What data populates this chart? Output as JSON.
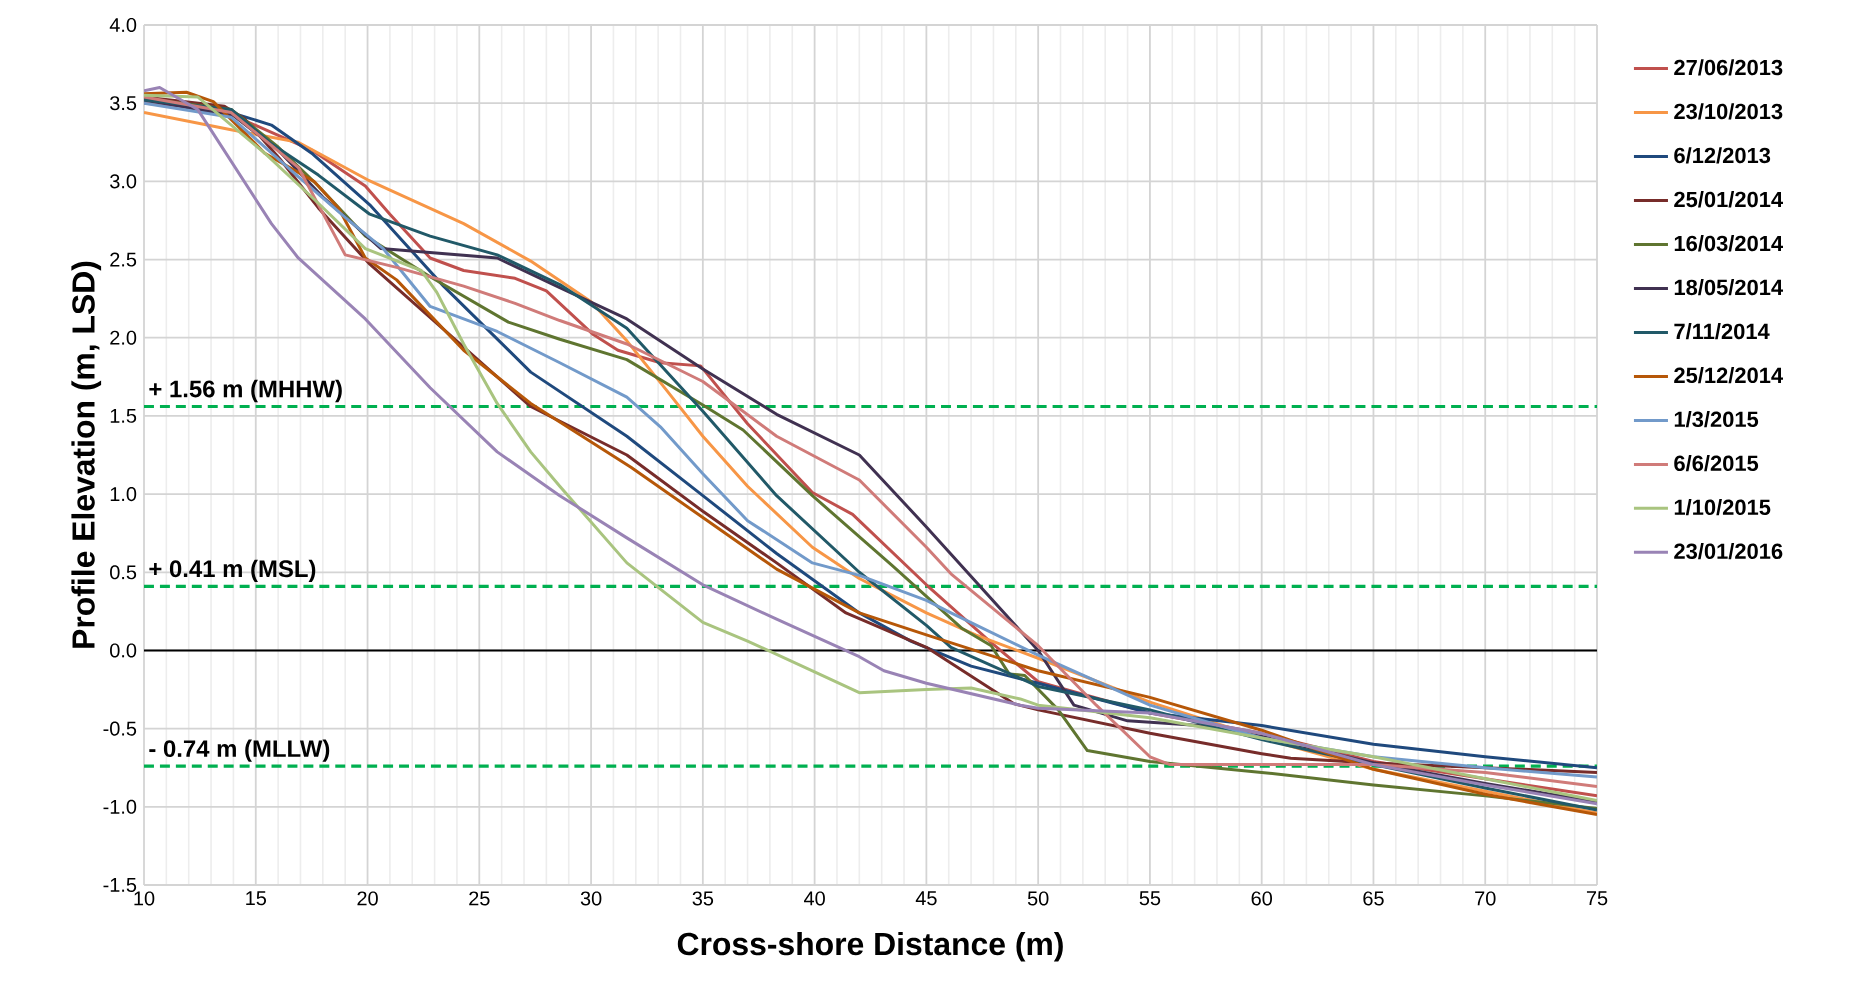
{
  "chart_data": {
    "type": "line",
    "xlabel": "Cross-shore Distance (m)",
    "ylabel": "Profile Elevation (m, LSD)",
    "xlim": [
      10,
      75
    ],
    "ylim": [
      -1.5,
      4
    ],
    "xticks": [
      10,
      15,
      20,
      25,
      30,
      35,
      40,
      45,
      50,
      55,
      60,
      65,
      70,
      75
    ],
    "yticks": [
      {
        "value": -1.5,
        "label": "-1.5"
      },
      {
        "value": -1,
        "label": "-1.0"
      },
      {
        "value": -0.5,
        "label": "-0.5"
      },
      {
        "value": 0,
        "label": "0.0"
      },
      {
        "value": 0.5,
        "label": "0.5"
      },
      {
        "value": 1,
        "label": "1.0"
      },
      {
        "value": 1.5,
        "label": "1.5"
      },
      {
        "value": 2,
        "label": "2.0"
      },
      {
        "value": 2.5,
        "label": "2.5"
      },
      {
        "value": 3,
        "label": "3.0"
      },
      {
        "value": 3.5,
        "label": "3.5"
      },
      {
        "value": 4,
        "label": "4.0"
      }
    ],
    "grid": true,
    "legend": "right",
    "marker": "none",
    "line_style": "solid",
    "ref_lines": [
      {
        "axis": "y",
        "value": 1.56,
        "label": "+ 1.56 m (MHHW)",
        "color": "#00b050",
        "line_style": "dashed"
      },
      {
        "axis": "y",
        "value": 0.41,
        "label": "+ 0.41 m (MSL)",
        "color": "#00b050",
        "line_style": "dashed"
      },
      {
        "axis": "y",
        "value": -0.74,
        "label": "- 0.74 m (MLLW)",
        "color": "#00b050",
        "line_style": "dashed"
      }
    ],
    "series": [
      {
        "name": "27/06/2013",
        "color": "#c0504d",
        "x": [
          10,
          12,
          14,
          17.5,
          19.9,
          21,
          22.8,
          24.3,
          26.6,
          28,
          30.1,
          31.2,
          33.1,
          34.9,
          37,
          39.9,
          41.7,
          45,
          47.9,
          50,
          55,
          60,
          65,
          70,
          75
        ],
        "values": [
          3.5,
          3.48,
          3.42,
          3.2,
          2.97,
          2.79,
          2.51,
          2.43,
          2.38,
          2.3,
          2.02,
          1.92,
          1.84,
          1.82,
          1.45,
          1.01,
          0.87,
          0.42,
          0.05,
          -0.2,
          -0.4,
          -0.53,
          -0.71,
          -0.82,
          -0.93
        ]
      },
      {
        "name": "23/10/2013",
        "color": "#f79646",
        "x": [
          10,
          13.9,
          16.9,
          20,
          24.3,
          27.3,
          30,
          31.6,
          33.4,
          35,
          37,
          39.9,
          42,
          45,
          47.2,
          50,
          55,
          60,
          65,
          70,
          75
        ],
        "values": [
          3.44,
          3.33,
          3.25,
          3.01,
          2.73,
          2.49,
          2.23,
          1.98,
          1.66,
          1.37,
          1.05,
          0.66,
          0.46,
          0.24,
          0.1,
          -0.05,
          -0.33,
          -0.56,
          -0.76,
          -0.9,
          -1.04
        ]
      },
      {
        "name": "6/12/2013",
        "color": "#1f497d",
        "x": [
          10,
          13.9,
          15.7,
          17.5,
          20.1,
          23.4,
          27.3,
          31.6,
          35,
          38.3,
          42,
          44.3,
          47,
          50,
          55,
          60,
          65,
          70,
          75
        ],
        "values": [
          3.52,
          3.44,
          3.36,
          3.18,
          2.85,
          2.33,
          1.78,
          1.37,
          0.99,
          0.62,
          0.24,
          0.06,
          -0.1,
          -0.21,
          -0.4,
          -0.48,
          -0.6,
          -0.68,
          -0.75
        ]
      },
      {
        "name": "25/01/2014",
        "color": "#772c2a",
        "x": [
          10,
          13.6,
          14.5,
          16.1,
          17.8,
          20.1,
          24.3,
          27.3,
          31.6,
          35,
          38.3,
          41.4,
          45,
          48.9,
          50,
          55,
          60,
          61.3,
          65,
          70,
          75
        ],
        "values": [
          3.54,
          3.48,
          3.4,
          3.14,
          2.83,
          2.47,
          1.94,
          1.56,
          1.25,
          0.89,
          0.56,
          0.24,
          0.02,
          -0.34,
          -0.38,
          -0.53,
          -0.66,
          -0.69,
          -0.72,
          -0.75,
          -0.78
        ]
      },
      {
        "name": "16/03/2014",
        "color": "#5f7530",
        "x": [
          10,
          13.9,
          16,
          17.8,
          19.9,
          22.8,
          26.3,
          28.6,
          31.6,
          35,
          36.8,
          39.9,
          43.5,
          46.6,
          47.9,
          48.7,
          49.4,
          50.9,
          52.2,
          55,
          60,
          65,
          70,
          75
        ],
        "values": [
          3.53,
          3.46,
          3.22,
          2.97,
          2.65,
          2.39,
          2.1,
          1.99,
          1.86,
          1.57,
          1.41,
          0.99,
          0.54,
          0.14,
          0.03,
          -0.15,
          -0.16,
          -0.38,
          -0.64,
          -0.71,
          -0.78,
          -0.86,
          -0.93,
          -1.01
        ]
      },
      {
        "name": "18/05/2014",
        "color": "#403151",
        "x": [
          10,
          14,
          16,
          18,
          20.6,
          25.8,
          28.6,
          31.6,
          35,
          38.3,
          42,
          45,
          50,
          51.6,
          54,
          57.2,
          60,
          65,
          70,
          75
        ],
        "values": [
          3.52,
          3.42,
          3.2,
          2.9,
          2.57,
          2.51,
          2.32,
          2.12,
          1.8,
          1.51,
          1.25,
          0.79,
          0,
          -0.35,
          -0.45,
          -0.48,
          -0.55,
          -0.72,
          -0.85,
          -0.97
        ]
      },
      {
        "name": "7/11/2014",
        "color": "#215968",
        "x": [
          10,
          13.9,
          15.7,
          17.8,
          20.1,
          22.8,
          25.8,
          28.6,
          31.6,
          35,
          38.3,
          42,
          45,
          46.1,
          50,
          55,
          60,
          65,
          70,
          75
        ],
        "values": [
          3.52,
          3.46,
          3.24,
          3.04,
          2.79,
          2.65,
          2.53,
          2.34,
          2.06,
          1.53,
          0.99,
          0.5,
          0.16,
          0.02,
          -0.23,
          -0.38,
          -0.57,
          -0.73,
          -0.88,
          -1.02
        ]
      },
      {
        "name": "25/12/2014",
        "color": "#b65708",
        "x": [
          10,
          11.9,
          13.1,
          15.4,
          17.6,
          18.7,
          19.9,
          21.3,
          24.3,
          27.3,
          31.8,
          35,
          38.3,
          42,
          45,
          50,
          55,
          60,
          65,
          70,
          75
        ],
        "values": [
          3.56,
          3.57,
          3.51,
          3.18,
          3.0,
          2.83,
          2.51,
          2.37,
          1.92,
          1.58,
          1.17,
          0.85,
          0.52,
          0.24,
          0.1,
          -0.13,
          -0.3,
          -0.51,
          -0.76,
          -0.92,
          -1.05
        ]
      },
      {
        "name": "1/3/2015",
        "color": "#729aca",
        "x": [
          10,
          13.9,
          16.9,
          19,
          20.7,
          22.8,
          25.8,
          28.6,
          31.6,
          33.1,
          35,
          37,
          39.9,
          42,
          45,
          46.1,
          50,
          55,
          60,
          65,
          70,
          75
        ],
        "values": [
          3.5,
          3.41,
          3.03,
          2.77,
          2.57,
          2.2,
          2.04,
          1.84,
          1.62,
          1.43,
          1.13,
          0.83,
          0.56,
          0.48,
          0.32,
          0.24,
          -0.03,
          -0.35,
          -0.56,
          -0.68,
          -0.75,
          -0.81
        ]
      },
      {
        "name": "6/6/2015",
        "color": "#d07b79",
        "x": [
          10,
          13.9,
          16.9,
          19,
          21.3,
          24.3,
          26.6,
          28.6,
          31.6,
          35,
          38.3,
          42,
          45,
          46.1,
          50,
          52.6,
          55,
          55.9,
          60,
          65,
          70,
          75
        ],
        "values": [
          3.54,
          3.44,
          3.09,
          2.53,
          2.45,
          2.33,
          2.22,
          2.11,
          1.96,
          1.72,
          1.37,
          1.09,
          0.66,
          0.49,
          0.03,
          -0.35,
          -0.68,
          -0.73,
          -0.73,
          -0.73,
          -0.78,
          -0.87
        ]
      },
      {
        "name": "1/10/2015",
        "color": "#a9c47f",
        "x": [
          10,
          12.4,
          15.4,
          17.8,
          19.9,
          22.4,
          23.1,
          24.3,
          25.8,
          27.3,
          28.6,
          31.6,
          35,
          37,
          39.9,
          42,
          45,
          47,
          49.2,
          50,
          55,
          60,
          65,
          70,
          75
        ],
        "values": [
          3.55,
          3.54,
          3.18,
          2.86,
          2.57,
          2.43,
          2.29,
          1.96,
          1.58,
          1.27,
          1.05,
          0.56,
          0.18,
          0.06,
          -0.13,
          -0.27,
          -0.25,
          -0.24,
          -0.31,
          -0.35,
          -0.43,
          -0.56,
          -0.68,
          -0.82,
          -0.96
        ]
      },
      {
        "name": "23/01/2016",
        "color": "#9983b5",
        "x": [
          10,
          10.7,
          12.4,
          15.7,
          16.9,
          19.9,
          22.8,
          25.8,
          28.6,
          31.6,
          35,
          38.3,
          42,
          43.1,
          45,
          49.2,
          50,
          55,
          60,
          65,
          70,
          75
        ],
        "values": [
          3.58,
          3.6,
          3.46,
          2.73,
          2.51,
          2.12,
          1.68,
          1.27,
          0.99,
          0.72,
          0.42,
          0.2,
          -0.04,
          -0.13,
          -0.21,
          -0.35,
          -0.37,
          -0.4,
          -0.53,
          -0.73,
          -0.86,
          -0.98
        ]
      }
    ]
  }
}
